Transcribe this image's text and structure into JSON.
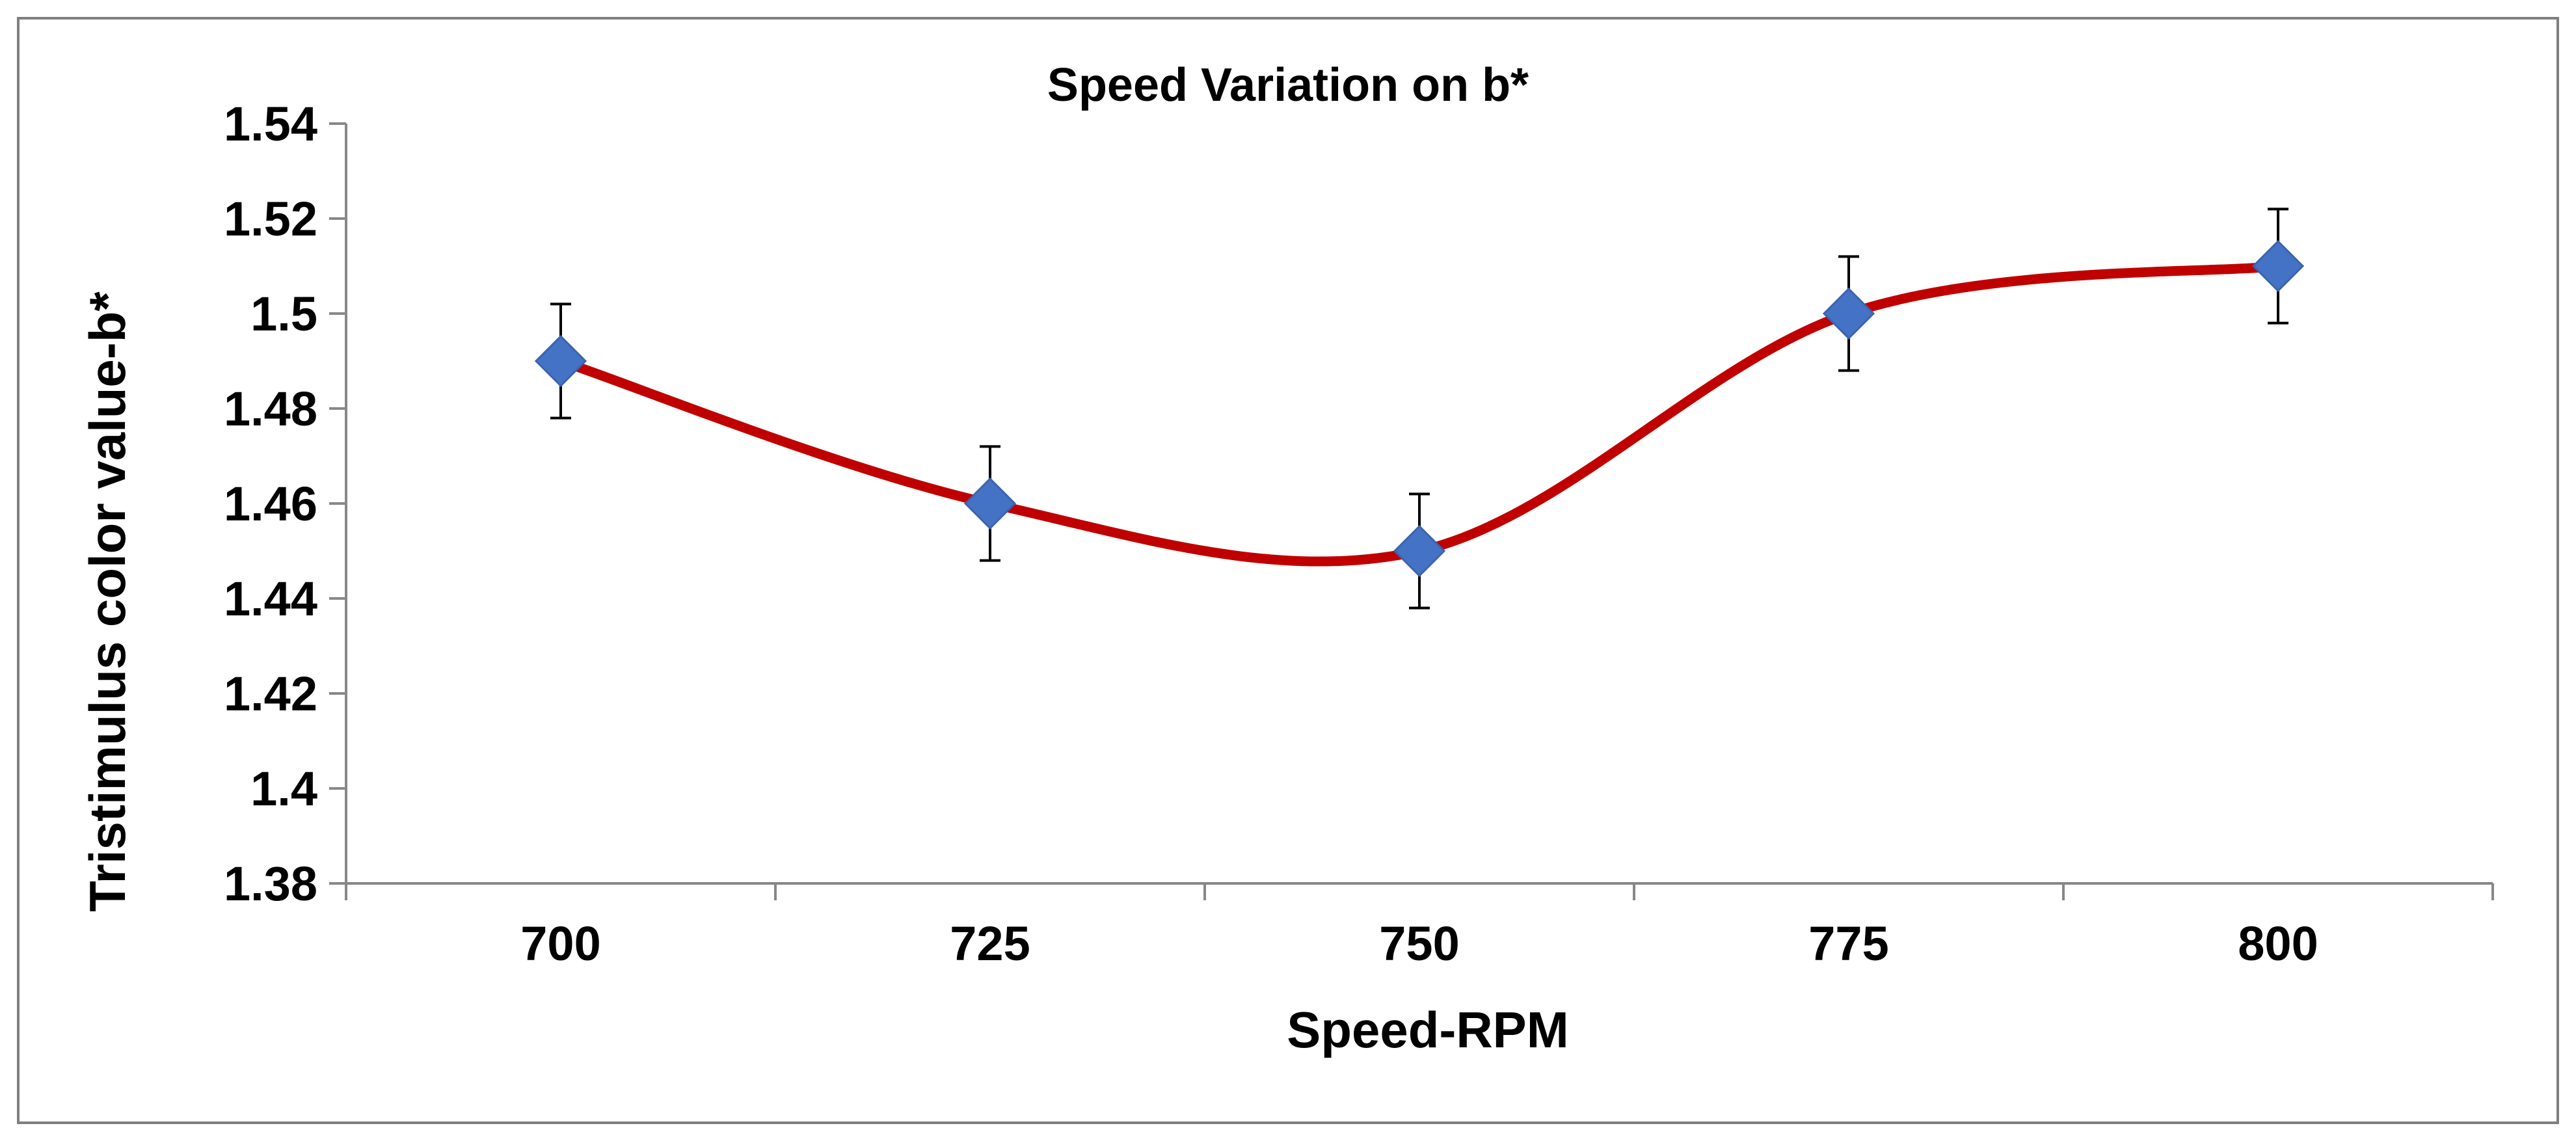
{
  "chart_data": {
    "type": "line",
    "title": "Speed Variation on b*",
    "xlabel": "Speed-RPM",
    "ylabel": "Tristimulus color value-b*",
    "categories": [
      "700",
      "725",
      "750",
      "775",
      "800"
    ],
    "series": [
      {
        "values": [
          1.49,
          1.46,
          1.45,
          1.5,
          1.51
        ],
        "error": [
          0.012,
          0.012,
          0.012,
          0.012,
          0.012
        ],
        "line_color": "#C00000",
        "marker_color": "#4472C4",
        "marker": "diamond",
        "smooth": true
      }
    ],
    "ylim": [
      1.38,
      1.54
    ],
    "yticks": [
      "1.38",
      "1.4",
      "1.42",
      "1.44",
      "1.46",
      "1.48",
      "1.5",
      "1.52",
      "1.54"
    ],
    "grid": false,
    "legend": "none"
  }
}
